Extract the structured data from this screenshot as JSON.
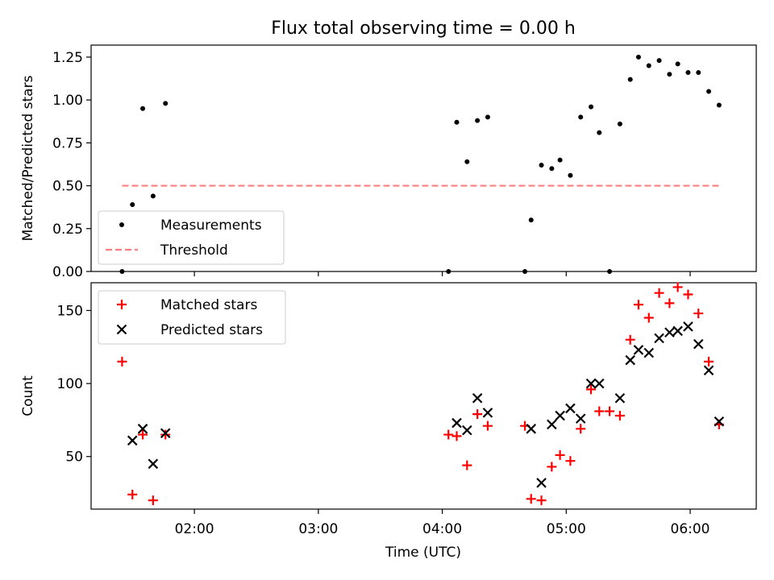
{
  "chart_data": {
    "title": "Flux total observing time = 0.00 h",
    "xlabel": "Time (UTC)",
    "xlim": [
      "01:10",
      "06:32"
    ],
    "xticks": [
      "02:00",
      "03:00",
      "04:00",
      "05:00",
      "06:00"
    ],
    "panels": [
      {
        "type": "scatter",
        "ylabel": "Matched/Predicted stars",
        "ylim": [
          0,
          1.32
        ],
        "yticks": [
          "0.00",
          "0.25",
          "0.50",
          "0.75",
          "1.00",
          "1.25"
        ],
        "legend": "lower-left",
        "series": [
          {
            "name": "Measurements",
            "marker": "dot",
            "color": "#000000",
            "x": [
              "01:25",
              "01:30",
              "01:35",
              "01:40",
              "01:46",
              "04:03",
              "04:07",
              "04:12",
              "04:17",
              "04:22",
              "04:40",
              "04:43",
              "04:48",
              "04:53",
              "04:57",
              "05:02",
              "05:07",
              "05:12",
              "05:16",
              "05:21",
              "05:26",
              "05:31",
              "05:35",
              "05:40",
              "05:45",
              "05:50",
              "05:54",
              "05:59",
              "06:04",
              "06:09",
              "06:14"
            ],
            "y": [
              0.0,
              0.39,
              0.95,
              0.44,
              0.98,
              0.0,
              0.87,
              0.64,
              0.88,
              0.9,
              0.0,
              0.3,
              0.62,
              0.6,
              0.65,
              0.56,
              0.9,
              0.96,
              0.81,
              0.0,
              0.86,
              1.12,
              1.25,
              1.2,
              1.23,
              1.15,
              1.21,
              1.16,
              1.16,
              1.05,
              0.97
            ]
          },
          {
            "name": "Threshold",
            "marker": "dashed-line",
            "color": "#ff7f7f",
            "x": [
              "01:25",
              "06:14"
            ],
            "y": [
              0.5,
              0.5
            ]
          }
        ]
      },
      {
        "type": "scatter",
        "ylabel": "Count",
        "ylim": [
          14,
          169
        ],
        "yticks": [
          "50",
          "100",
          "150"
        ],
        "legend": "top-left",
        "series": [
          {
            "name": "Matched stars",
            "marker": "plus",
            "color": "#ff0000",
            "x": [
              "01:25",
              "01:30",
              "01:35",
              "01:40",
              "01:46",
              "04:03",
              "04:07",
              "04:12",
              "04:17",
              "04:22",
              "04:40",
              "04:43",
              "04:48",
              "04:53",
              "04:57",
              "05:02",
              "05:07",
              "05:12",
              "05:16",
              "05:21",
              "05:26",
              "05:31",
              "05:35",
              "05:40",
              "05:45",
              "05:50",
              "05:54",
              "05:59",
              "06:04",
              "06:09",
              "06:14"
            ],
            "y": [
              115,
              24,
              65,
              20,
              65,
              65,
              64,
              44,
              79,
              71,
              71,
              21,
              20,
              43,
              51,
              47,
              69,
              96,
              81,
              81,
              78,
              130,
              154,
              145,
              162,
              155,
              166,
              161,
              148,
              115,
              72
            ]
          },
          {
            "name": "Predicted stars",
            "marker": "x",
            "color": "#000000",
            "x": [
              "01:30",
              "01:35",
              "01:40",
              "01:46",
              "04:07",
              "04:12",
              "04:17",
              "04:22",
              "04:43",
              "04:48",
              "04:53",
              "04:57",
              "05:02",
              "05:07",
              "05:12",
              "05:16",
              "05:26",
              "05:31",
              "05:35",
              "05:40",
              "05:45",
              "05:50",
              "05:54",
              "05:59",
              "06:04",
              "06:09",
              "06:14"
            ],
            "y": [
              61,
              69,
              45,
              66,
              73,
              68,
              90,
              80,
              69,
              32,
              72,
              78,
              83,
              76,
              100,
              100,
              90,
              116,
              123,
              121,
              131,
              135,
              136,
              139,
              127,
              109,
              74
            ]
          }
        ]
      }
    ]
  }
}
